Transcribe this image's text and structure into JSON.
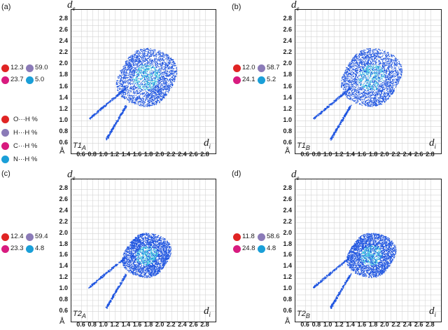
{
  "colors": {
    "oh": "#e02424",
    "hh": "#8b7bb8",
    "ch": "#d81b7f",
    "nh": "#1a9fd8",
    "fingerprint_blue": "#1f55e0",
    "fingerprint_cyan": "#39c6e0"
  },
  "axes": {
    "ylabel": "d",
    "ylabel_sub": "e",
    "xlabel": "d",
    "xlabel_sub": "i",
    "unit": "Å",
    "yticks": [
      "2.8",
      "2.6",
      "2.4",
      "2.2",
      "2.0",
      "1.8",
      "1.6",
      "1.4",
      "1.2",
      "1.0",
      "0.8",
      "0.6"
    ],
    "xticks": [
      "0.6",
      "0.8",
      "1.0",
      "1.2",
      "1.4",
      "1.6",
      "1.8",
      "2.0",
      "2.2",
      "2.4",
      "2.6",
      "2.8"
    ]
  },
  "legend": [
    {
      "label": "O···H %",
      "color_key": "oh"
    },
    {
      "label": "H···H %",
      "color_key": "hh"
    },
    {
      "label": "C···H %",
      "color_key": "ch"
    },
    {
      "label": "N···H %",
      "color_key": "nh"
    }
  ],
  "panels": [
    {
      "label": "(a)",
      "title": "T1",
      "title_sub": "A",
      "oh": "12.3",
      "hh": "59.0",
      "ch": "23.7",
      "nh": "5.0"
    },
    {
      "label": "(b)",
      "title": "T1",
      "title_sub": "B",
      "oh": "12.0",
      "hh": "58.7",
      "ch": "24.1",
      "nh": "5.2"
    },
    {
      "label": "(c)",
      "title": "T2",
      "title_sub": "A",
      "oh": "12.4",
      "hh": "59.4",
      "ch": "23.3",
      "nh": "4.8"
    },
    {
      "label": "(d)",
      "title": "T2",
      "title_sub": "B",
      "oh": "11.8",
      "hh": "58.6",
      "ch": "24.8",
      "nh": "4.8"
    }
  ]
}
